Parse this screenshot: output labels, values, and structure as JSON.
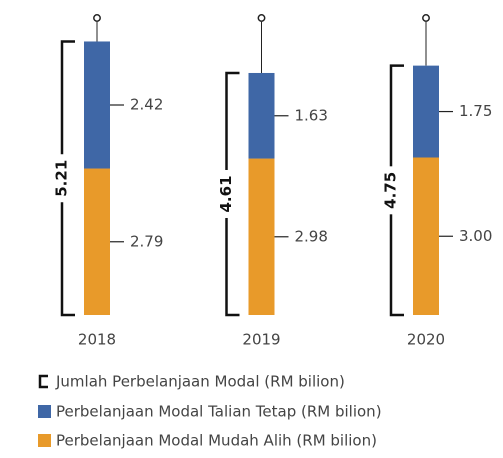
{
  "chart_data": {
    "type": "stacked-bar",
    "categories": [
      "2018",
      "2019",
      "2020"
    ],
    "series": [
      {
        "name": "Perbelanjaan Modal Mudah Alih (RM bilion)",
        "color": "#e89a2a",
        "values": [
          2.79,
          2.98,
          3.0
        ],
        "value_labels": [
          "2.79",
          "2.98",
          "3.00"
        ]
      },
      {
        "name": "Perbelanjaan Modal Talian Tetap (RM bilion)",
        "color": "#3f67a6",
        "values": [
          2.42,
          1.63,
          1.75
        ]
      }
    ],
    "totals": {
      "name": "Jumlah Perbelanjaan Modal (RM bilion)",
      "values": [
        5.21,
        4.61,
        4.75
      ]
    },
    "ylim": [
      0,
      6
    ]
  }
}
